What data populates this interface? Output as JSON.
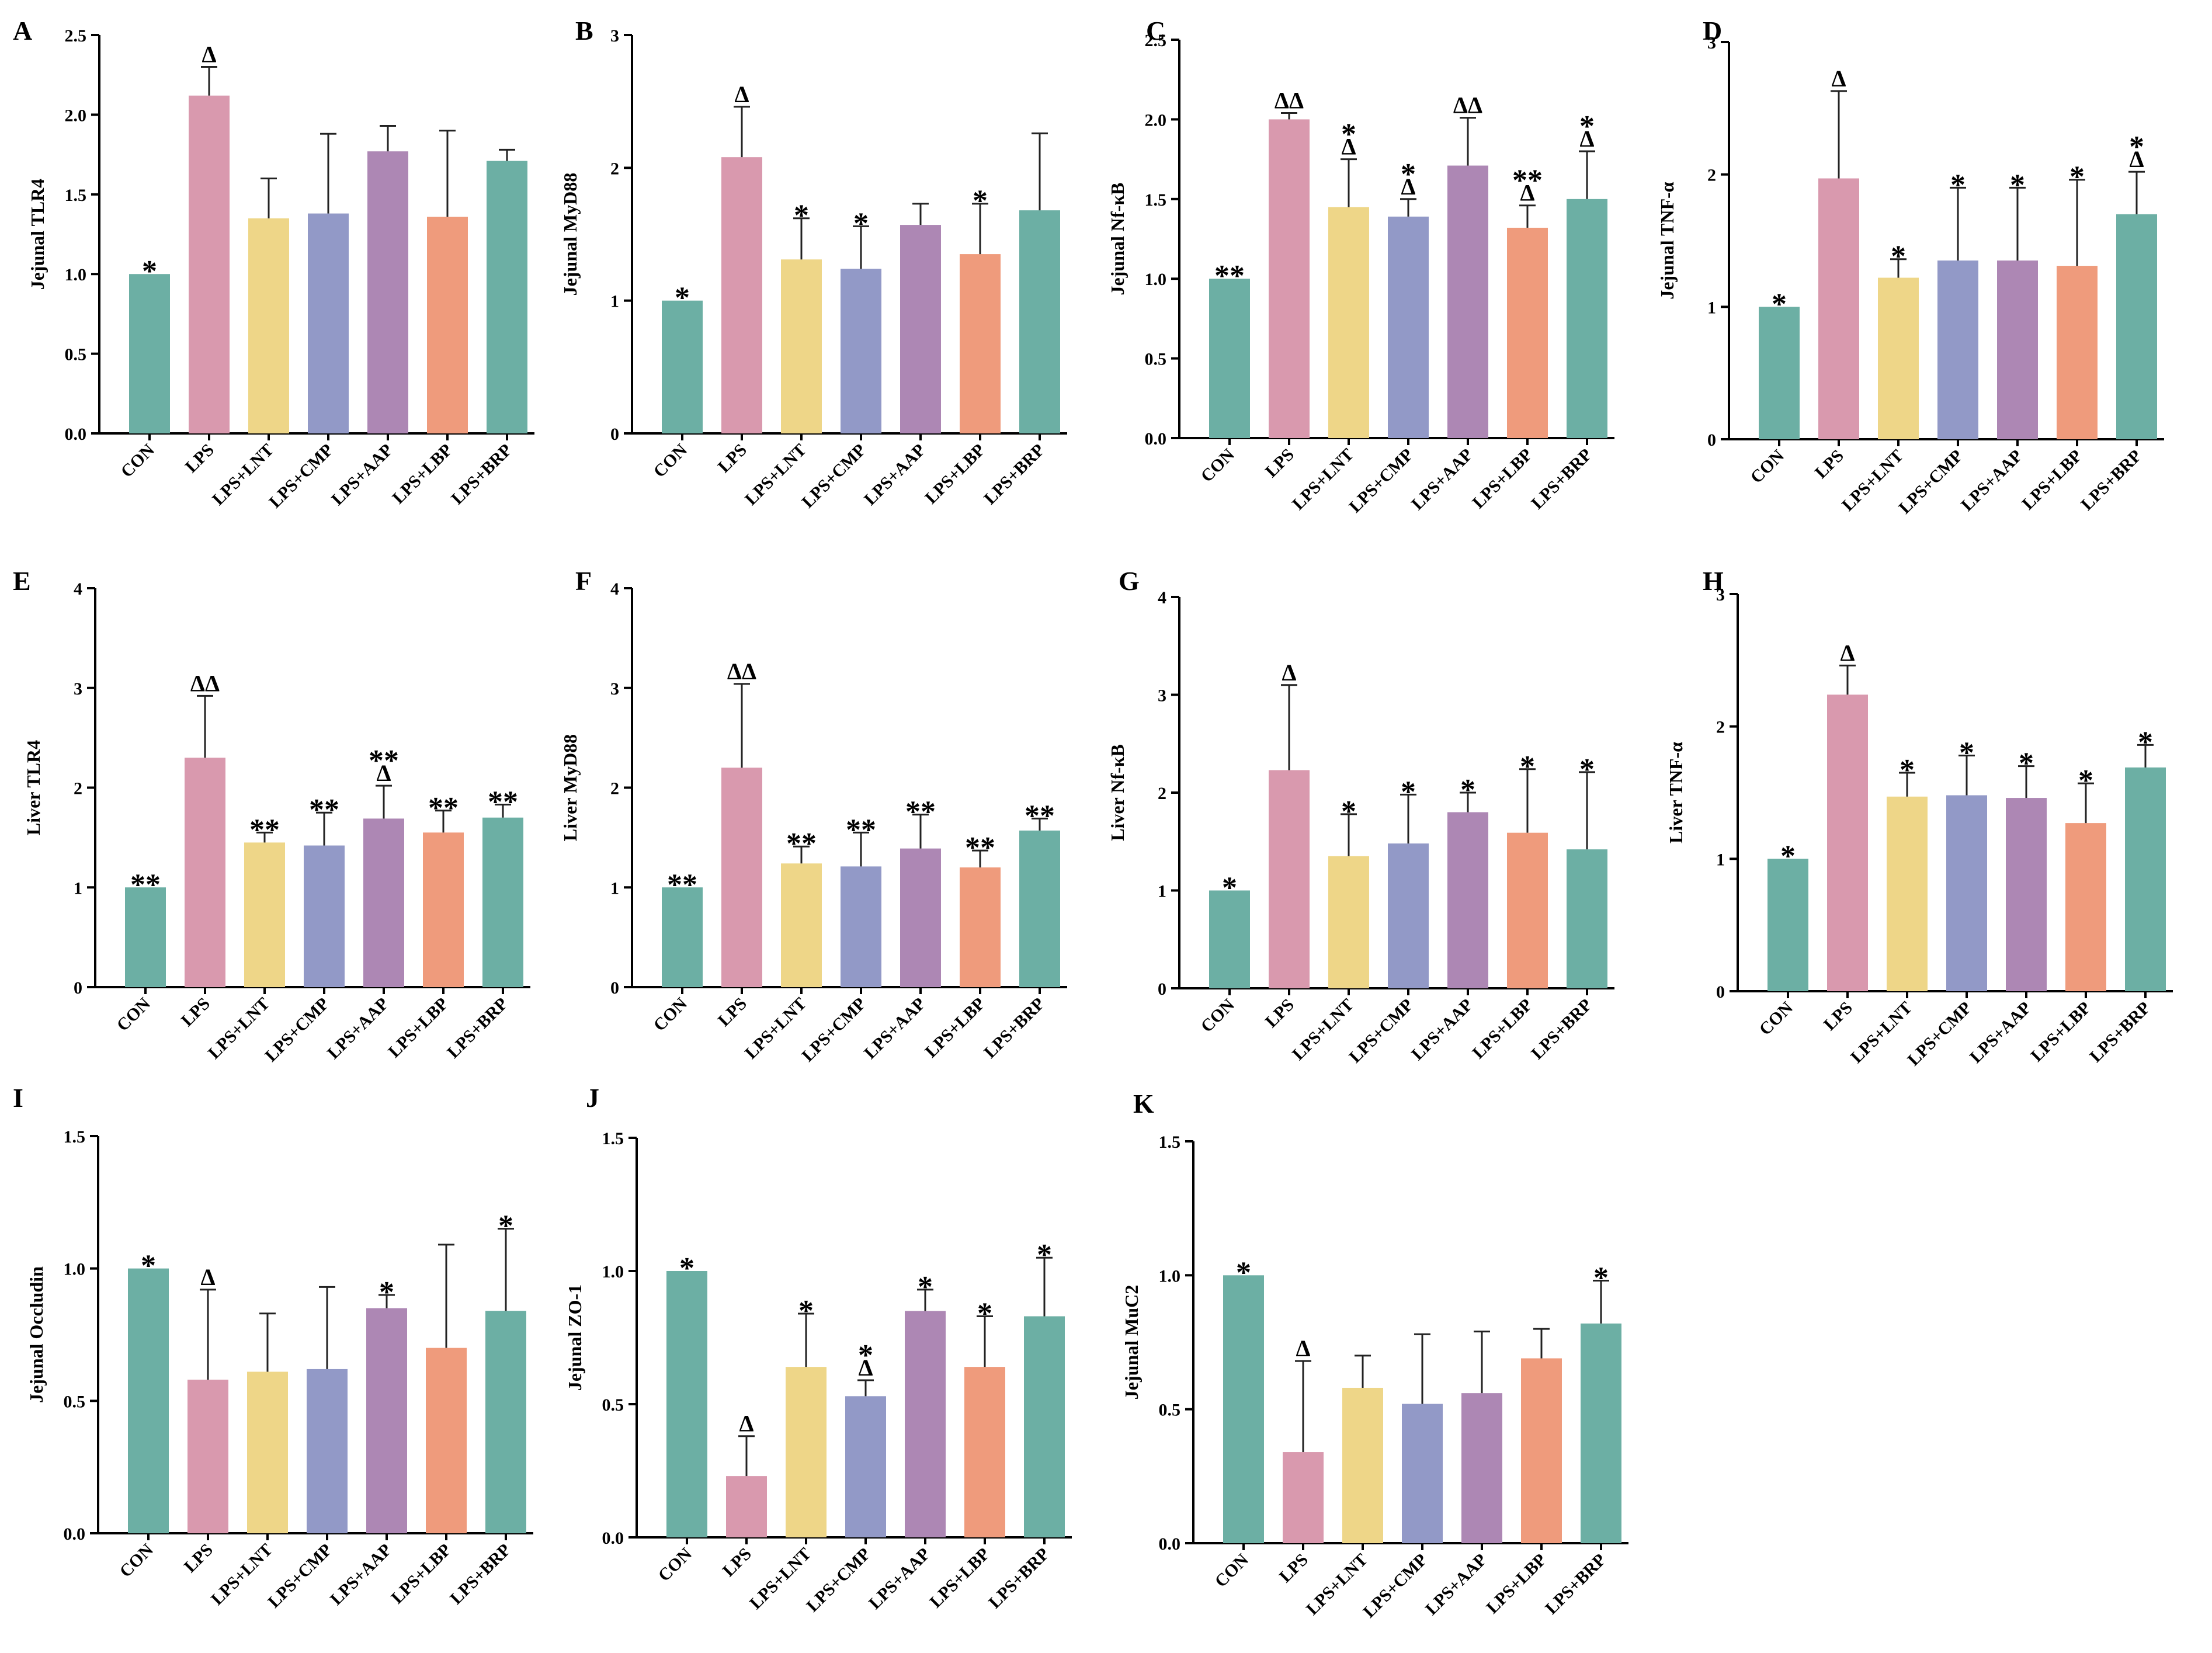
{
  "figure": {
    "description_title": ""
  },
  "chart_data": [
    {
      "panel": "A",
      "type": "bar",
      "ylabel": "Jejunal TLR4",
      "categories": [
        "CON",
        "LPS",
        "LPS+LNT",
        "LPS+CMP",
        "LPS+AAP",
        "LPS+LBP",
        "LPS+BRP"
      ],
      "values": [
        1.0,
        2.12,
        1.35,
        1.38,
        1.77,
        1.36,
        1.71
      ],
      "errors": [
        0,
        0.18,
        0.25,
        0.5,
        0.16,
        0.54,
        0.07
      ],
      "ylim": [
        0,
        2.5
      ],
      "yticks": [
        "0.0",
        "0.5",
        "1.0",
        "1.5",
        "2.0",
        "2.5"
      ],
      "annotations": [
        "*",
        "Δ",
        "",
        "",
        "",
        "",
        ""
      ]
    },
    {
      "panel": "B",
      "type": "bar",
      "ylabel": "Jejunal MyD88",
      "categories": [
        "CON",
        "LPS",
        "LPS+LNT",
        "LPS+CMP",
        "LPS+AAP",
        "LPS+LBP",
        "LPS+BRP"
      ],
      "values": [
        1.0,
        2.08,
        1.31,
        1.24,
        1.57,
        1.35,
        1.68
      ],
      "errors": [
        0,
        0.38,
        0.31,
        0.32,
        0.16,
        0.38,
        0.58
      ],
      "ylim": [
        0,
        3
      ],
      "yticks": [
        "0",
        "1",
        "2",
        "3"
      ],
      "annotations": [
        "*",
        "Δ",
        "*",
        "*",
        "",
        "*",
        ""
      ]
    },
    {
      "panel": "C",
      "type": "bar",
      "ylabel": "Jejunal Nf-κB",
      "categories": [
        "CON",
        "LPS",
        "LPS+LNT",
        "LPS+CMP",
        "LPS+AAP",
        "LPS+LBP",
        "LPS+BRP"
      ],
      "values": [
        1.0,
        2.0,
        1.45,
        1.39,
        1.71,
        1.32,
        1.5
      ],
      "errors": [
        0,
        0.04,
        0.3,
        0.11,
        0.3,
        0.14,
        0.3
      ],
      "ylim": [
        0,
        2.5
      ],
      "yticks": [
        "0.0",
        "0.5",
        "1.0",
        "1.5",
        "2.0",
        "2.5"
      ],
      "annotations": [
        "**",
        "ΔΔ",
        "*\nΔ",
        "*\nΔ",
        "ΔΔ",
        "**\nΔ",
        "*\nΔ"
      ]
    },
    {
      "panel": "D",
      "type": "bar",
      "ylabel": "Jejunal TNF-α",
      "categories": [
        "CON",
        "LPS",
        "LPS+LNT",
        "LPS+CMP",
        "LPS+AAP",
        "LPS+LBP",
        "LPS+BRP"
      ],
      "values": [
        1.0,
        1.97,
        1.22,
        1.35,
        1.35,
        1.31,
        1.7
      ],
      "errors": [
        0,
        0.66,
        0.14,
        0.55,
        0.55,
        0.65,
        0.32
      ],
      "ylim": [
        0,
        3
      ],
      "yticks": [
        "0",
        "1",
        "2",
        "3"
      ],
      "annotations": [
        "*",
        "Δ",
        "*",
        "*",
        "*",
        "*",
        "*\nΔ"
      ]
    },
    {
      "panel": "E",
      "type": "bar",
      "ylabel": "Liver TLR4",
      "categories": [
        "CON",
        "LPS",
        "LPS+LNT",
        "LPS+CMP",
        "LPS+AAP",
        "LPS+LBP",
        "LPS+BRP"
      ],
      "values": [
        1.0,
        2.3,
        1.45,
        1.42,
        1.69,
        1.55,
        1.7
      ],
      "errors": [
        0,
        0.62,
        0.1,
        0.33,
        0.33,
        0.22,
        0.13
      ],
      "ylim": [
        0,
        4
      ],
      "yticks": [
        "0",
        "1",
        "2",
        "3",
        "4"
      ],
      "annotations": [
        "**",
        "ΔΔ",
        "**",
        "**",
        "**\nΔ",
        "**",
        "**"
      ]
    },
    {
      "panel": "F",
      "type": "bar",
      "ylabel": "Liver MyD88",
      "categories": [
        "CON",
        "LPS",
        "LPS+LNT",
        "LPS+CMP",
        "LPS+AAP",
        "LPS+LBP",
        "LPS+BRP"
      ],
      "values": [
        1.0,
        2.2,
        1.24,
        1.21,
        1.39,
        1.2,
        1.57
      ],
      "errors": [
        0,
        0.84,
        0.17,
        0.34,
        0.34,
        0.17,
        0.12
      ],
      "ylim": [
        0,
        4
      ],
      "yticks": [
        "0",
        "1",
        "2",
        "3",
        "4"
      ],
      "annotations": [
        "**",
        "ΔΔ",
        "**",
        "**",
        "**",
        "**",
        "**"
      ]
    },
    {
      "panel": "G",
      "type": "bar",
      "ylabel": "Liver  Nf-κB",
      "categories": [
        "CON",
        "LPS",
        "LPS+LNT",
        "LPS+CMP",
        "LPS+AAP",
        "LPS+LBP",
        "LPS+BRP"
      ],
      "values": [
        1.0,
        2.23,
        1.35,
        1.48,
        1.8,
        1.59,
        1.42
      ],
      "errors": [
        0,
        0.87,
        0.43,
        0.5,
        0.2,
        0.65,
        0.79
      ],
      "ylim": [
        0,
        4
      ],
      "yticks": [
        "0",
        "1",
        "2",
        "3",
        "4"
      ],
      "annotations": [
        "*",
        "Δ",
        "*",
        "*",
        "*",
        "*",
        "*"
      ]
    },
    {
      "panel": "H",
      "type": "bar",
      "ylabel": "Liver TNF-α",
      "categories": [
        "CON",
        "LPS",
        "LPS+LNT",
        "LPS+CMP",
        "LPS+AAP",
        "LPS+LBP",
        "LPS+BRP"
      ],
      "values": [
        1.0,
        2.24,
        1.47,
        1.48,
        1.46,
        1.27,
        1.69
      ],
      "errors": [
        0,
        0.22,
        0.18,
        0.3,
        0.24,
        0.3,
        0.17
      ],
      "ylim": [
        0,
        3
      ],
      "yticks": [
        "0",
        "1",
        "2",
        "3"
      ],
      "annotations": [
        "*",
        "Δ",
        "*",
        "*",
        "*",
        "*",
        "*"
      ]
    },
    {
      "panel": "I",
      "type": "bar",
      "ylabel": "Jejunal Occludin",
      "categories": [
        "CON",
        "LPS",
        "LPS+LNT",
        "LPS+CMP",
        "LPS+AAP",
        "LPS+LBP",
        "LPS+BRP"
      ],
      "values": [
        1.0,
        0.58,
        0.61,
        0.62,
        0.85,
        0.7,
        0.84
      ],
      "errors": [
        0,
        0.34,
        0.22,
        0.31,
        0.05,
        0.39,
        0.31
      ],
      "ylim": [
        0,
        1.5
      ],
      "yticks": [
        "0.0",
        "0.5",
        "1.0",
        "1.5"
      ],
      "annotations": [
        "*",
        "Δ",
        "",
        "",
        "*",
        "",
        "*"
      ]
    },
    {
      "panel": "J",
      "type": "bar",
      "ylabel": "Jejunal ZO-1",
      "categories": [
        "CON",
        "LPS",
        "LPS+LNT",
        "LPS+CMP",
        "LPS+AAP",
        "LPS+LBP",
        "LPS+BRP"
      ],
      "values": [
        1.0,
        0.23,
        0.64,
        0.53,
        0.85,
        0.64,
        0.83
      ],
      "errors": [
        0,
        0.15,
        0.2,
        0.06,
        0.08,
        0.19,
        0.22
      ],
      "ylim": [
        0,
        1.5
      ],
      "yticks": [
        "0.0",
        "0.5",
        "1.0",
        "1.5"
      ],
      "annotations": [
        "*",
        "Δ",
        "*",
        "*\nΔ",
        "*",
        "*",
        "*"
      ]
    },
    {
      "panel": "K",
      "type": "bar",
      "ylabel": "Jejunal MuC2",
      "categories": [
        "CON",
        "LPS",
        "LPS+LNT",
        "LPS+CMP",
        "LPS+AAP",
        "LPS+LBP",
        "LPS+BRP"
      ],
      "values": [
        1.0,
        0.34,
        0.58,
        0.52,
        0.56,
        0.69,
        0.82
      ],
      "errors": [
        0,
        0.34,
        0.12,
        0.26,
        0.23,
        0.11,
        0.16
      ],
      "ylim": [
        0,
        1.5
      ],
      "yticks": [
        "0.0",
        "0.5",
        "1.0",
        "1.5"
      ],
      "annotations": [
        "*",
        "Δ",
        "",
        "",
        "",
        "",
        "*"
      ]
    }
  ],
  "colors": [
    "#6cafa4",
    "#d999ae",
    "#eed688",
    "#9299c7",
    "#ad87b4",
    "#ef9b7c",
    "#6cafa4"
  ]
}
